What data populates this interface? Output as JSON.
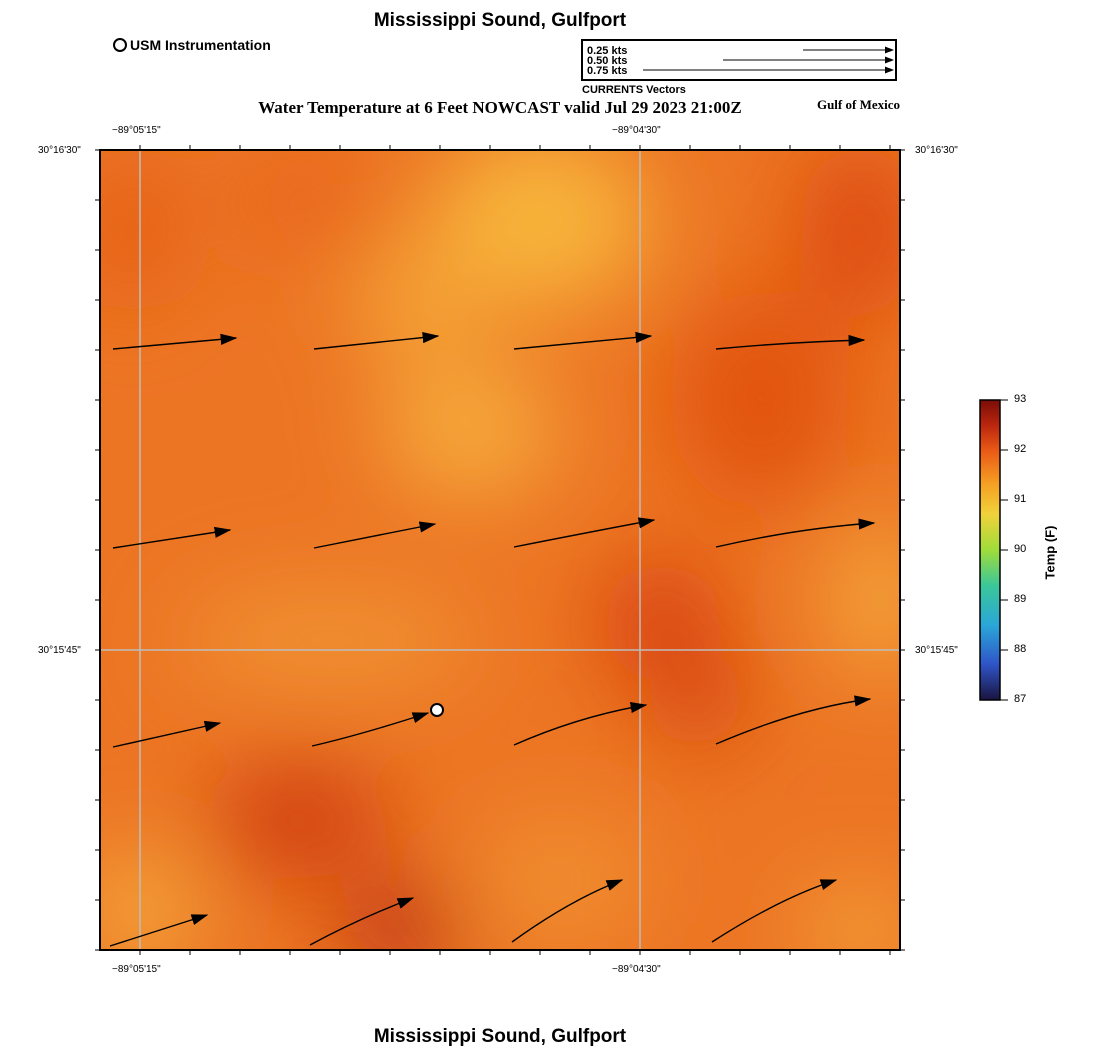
{
  "header": {
    "title": "Mississippi Sound, Gulfport",
    "subtitle": "Water Temperature at 6 Feet NOWCAST valid Jul 29 2023 21:00Z",
    "region": "Gulf of Mexico",
    "footer_title": "Mississippi Sound, Gulfport"
  },
  "legend": {
    "usm_label": "USM Instrumentation",
    "vectors": [
      {
        "label": "0.25 kts",
        "speed": 0.25
      },
      {
        "label": "0.50 kts",
        "speed": 0.5
      },
      {
        "label": "0.75 kts",
        "speed": 0.75
      }
    ],
    "vectors_caption": "CURRENTS Vectors"
  },
  "axes": {
    "top": [
      "−89°05'15\"",
      "−89°04'30\""
    ],
    "bottom": [
      "−89°05'15\"",
      "−89°04'30\""
    ],
    "left": [
      "30°16'30\"",
      "30°15'45\""
    ],
    "right": [
      "30°16'30\"",
      "30°15'45\""
    ]
  },
  "colorbar": {
    "title": "Temp (F)",
    "ticks": [
      "93",
      "92",
      "91",
      "90",
      "89",
      "88",
      "87"
    ],
    "min": 87,
    "max": 93,
    "colors": [
      "#1a1440",
      "#2f55c8",
      "#2aa7d8",
      "#3ac79a",
      "#9fdc3a",
      "#f1d23a",
      "#f5a023",
      "#ea5a16",
      "#b8240e",
      "#7a0d07"
    ]
  },
  "map": {
    "colors": {
      "hot": "#d73d0c",
      "mid": "#ec7524",
      "cool": "#f7b43a",
      "grid": "#bdbdbd"
    },
    "station": {
      "name": "USM Instrumentation"
    }
  }
}
